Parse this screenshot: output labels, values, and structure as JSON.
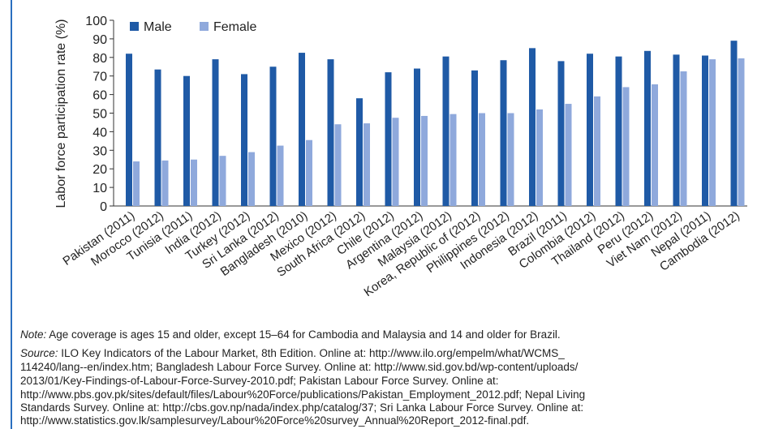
{
  "chart_data": {
    "type": "bar",
    "y_label": "Labor force participation rate (%)",
    "categories": [
      "Pakistan (2011)",
      "Morocco (2012)",
      "Tunisia (2011)",
      "India (2012)",
      "Turkey (2012)",
      "Sri Lanka (2012)",
      "Bangladesh (2010)",
      "Mexico (2012)",
      "South Africa (2012)",
      "Chile (2012)",
      "Argentina (2012)",
      "Malaysia (2012)",
      "Korea, Republic of (2012)",
      "Philippines (2012)",
      "Indonesia (2012)",
      "Brazil (2011)",
      "Colombia (2012)",
      "Thailand (2012)",
      "Peru (2012)",
      "Viet Nam (2012)",
      "Nepal (2011)",
      "Cambodia (2012)"
    ],
    "series": [
      {
        "name": "Male",
        "color": "#1f5aa6",
        "values": [
          82,
          73.5,
          70,
          79,
          71,
          75,
          82.5,
          79,
          58,
          72,
          74,
          80.5,
          73,
          78.5,
          85,
          78,
          82,
          80.5,
          83.5,
          81.5,
          81,
          89
        ]
      },
      {
        "name": "Female",
        "color": "#8fa9dc",
        "values": [
          24,
          24.5,
          25,
          27,
          29,
          32.5,
          35.5,
          44,
          44.5,
          47.5,
          48.5,
          49.5,
          50,
          50,
          52,
          55,
          59,
          64,
          65.5,
          72.5,
          79,
          79.5
        ]
      }
    ],
    "ylim": [
      0,
      100
    ],
    "yticks": [
      0,
      10,
      20,
      30,
      40,
      50,
      60,
      70,
      80,
      90,
      100
    ],
    "legend": "top-left",
    "grid": false
  },
  "notes": {
    "note_label": "Note:",
    "note_text": " Age coverage is ages 15 and older, except 15–64 for Cambodia and Malaysia and 14 and older for Brazil.",
    "source_label": "Source:",
    "source_lines": [
      " ILO Key Indicators of the Labour Market, 8th Edition. Online at: http://www.ilo.org/empelm/what/WCMS_",
      "114240/lang--en/index.htm; Bangladesh Labour Force Survey. Online at: http://www.sid.gov.bd/wp-content/uploads/",
      "2013/01/Key-Findings-of-Labour-Force-Survey-2010.pdf; Pakistan Labour Force Survey. Online at:",
      "http://www.pbs.gov.pk/sites/default/files/Labour%20Force/publications/Pakistan_Employment_2012.pdf; Nepal Living",
      "Standards Survey. Online at: http://cbs.gov.np/nada/index.php/catalog/37; Sri Lanka Labour Force Survey. Online at:",
      "http://www.statistics.gov.lk/samplesurvey/Labour%20Force%20survey_Annual%20Report_2012-final.pdf."
    ]
  }
}
